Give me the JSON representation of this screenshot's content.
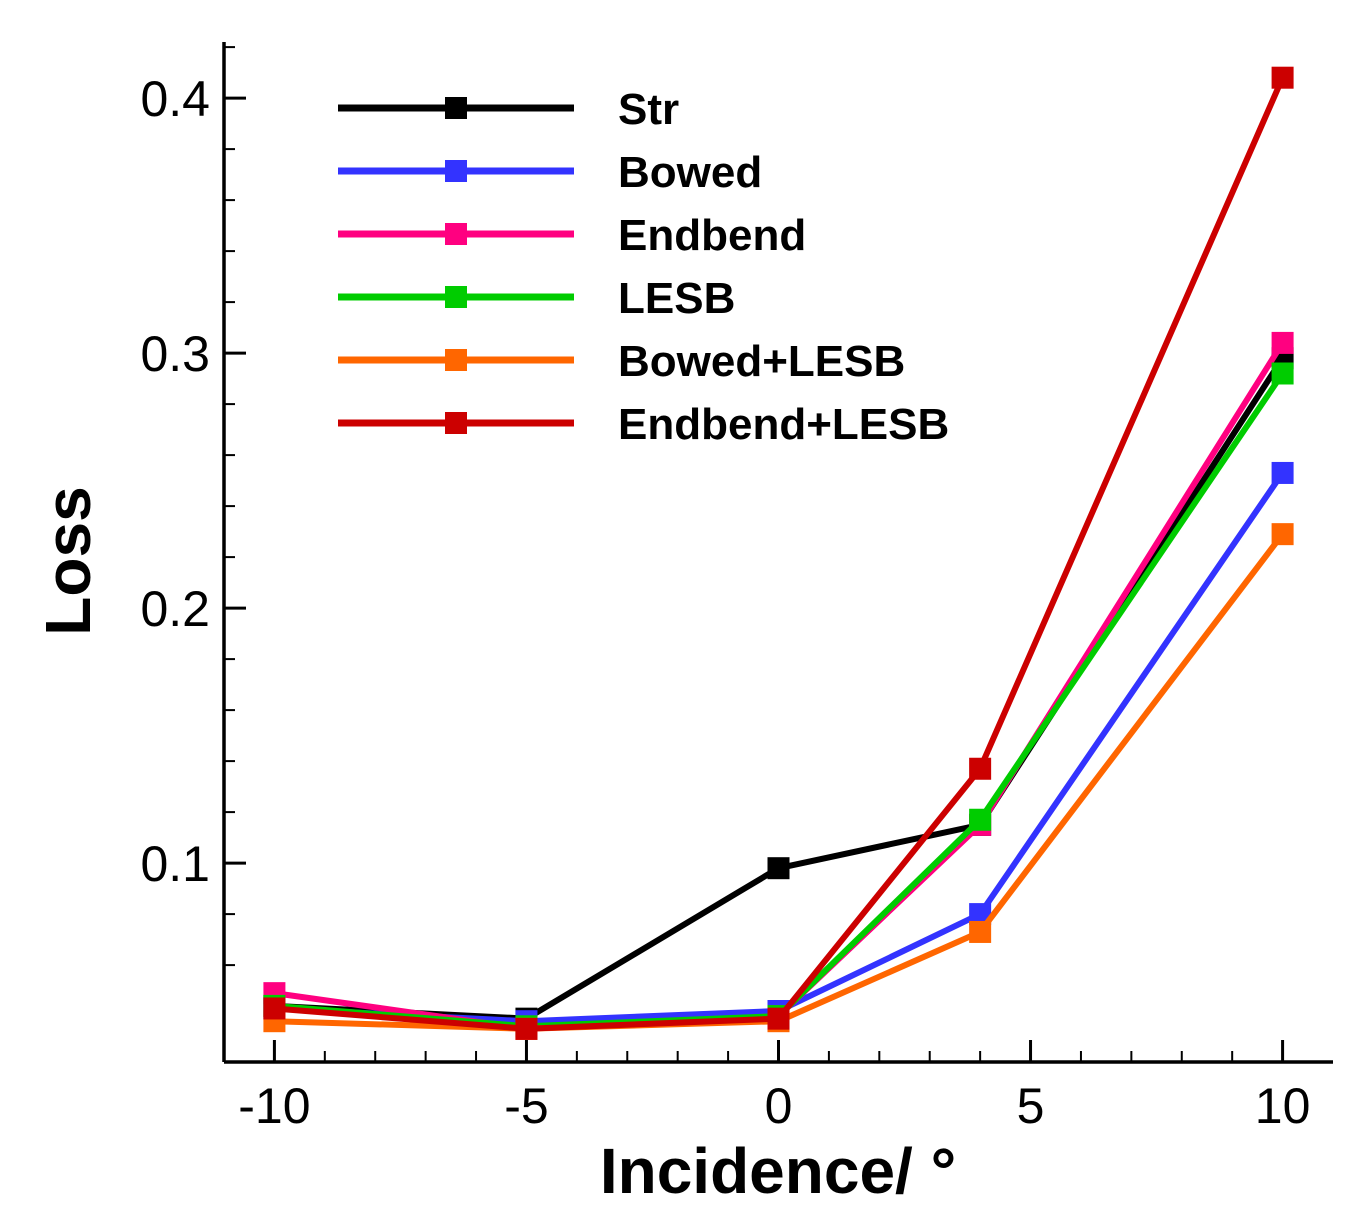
{
  "chart_data": {
    "type": "line",
    "title": "",
    "xlabel": "Incidence/ °",
    "ylabel": "Loss",
    "xlim": [
      -11,
      11
    ],
    "ylim": [
      0.022,
      0.422
    ],
    "xticks": [
      -10,
      -5,
      0,
      5,
      10
    ],
    "xtick_labels": [
      "-10",
      "-5",
      "0",
      "5",
      "10"
    ],
    "yticks": [
      0.1,
      0.2,
      0.3,
      0.4
    ],
    "ytick_labels": [
      "0.1",
      "0.2",
      "0.3",
      "0.4"
    ],
    "x": [
      -10,
      -5,
      0,
      4,
      10
    ],
    "legend_position": "top-left",
    "series": [
      {
        "name": "Str",
        "color": "#000000",
        "values": [
          0.044,
          0.039,
          0.098,
          0.115,
          0.298
        ]
      },
      {
        "name": "Bowed",
        "color": "#3333ff",
        "values": [
          0.043,
          0.038,
          0.042,
          0.08,
          0.253
        ]
      },
      {
        "name": "Endbend",
        "color": "#ff0080",
        "values": [
          0.049,
          0.035,
          0.04,
          0.115,
          0.304
        ]
      },
      {
        "name": "LESB",
        "color": "#00cc00",
        "values": [
          0.044,
          0.036,
          0.04,
          0.117,
          0.292
        ]
      },
      {
        "name": "Bowed+LESB",
        "color": "#ff6600",
        "values": [
          0.038,
          0.035,
          0.038,
          0.073,
          0.229
        ]
      },
      {
        "name": "Endbend+LESB",
        "color": "#cc0000",
        "values": [
          0.043,
          0.035,
          0.039,
          0.137,
          0.408
        ]
      }
    ]
  }
}
